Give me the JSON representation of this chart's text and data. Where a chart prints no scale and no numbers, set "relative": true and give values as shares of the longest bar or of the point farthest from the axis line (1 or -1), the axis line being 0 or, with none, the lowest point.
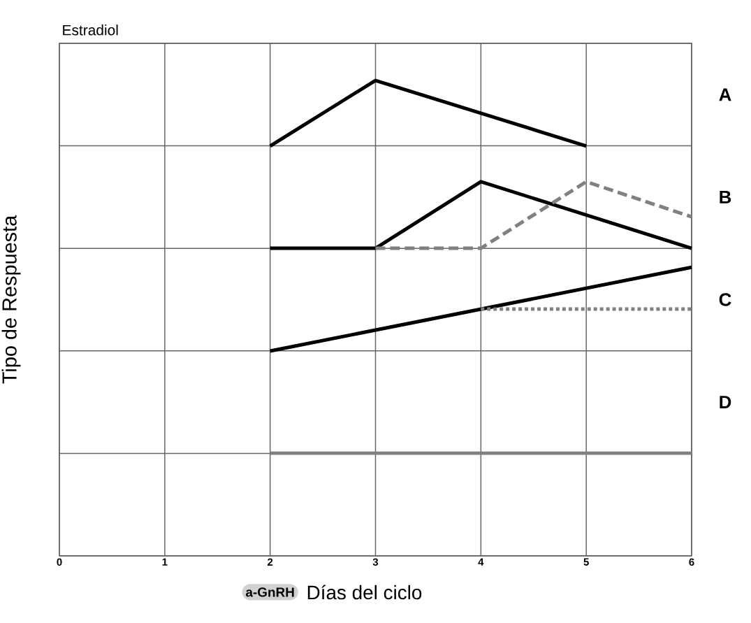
{
  "chart_data": {
    "type": "line",
    "title": "Estradiol",
    "xlabel": "Días del ciclo",
    "ylabel": "Tipo de Respuesta",
    "relative": true,
    "xlim": [
      0,
      6
    ],
    "xticks": [
      0,
      1,
      2,
      3,
      4,
      5,
      6
    ],
    "grid": true,
    "tick_labels": "x",
    "series": [
      {
        "color": "#000000",
        "line_style": "solid",
        "x": [
          2,
          3,
          5
        ],
        "values": [
          0.862,
          1.0,
          0.862
        ]
      },
      {
        "color": "#000000",
        "line_style": "solid",
        "x": [
          2,
          3,
          4,
          6
        ],
        "values": [
          0.647,
          0.647,
          0.787,
          0.647
        ]
      },
      {
        "color": "#808080",
        "line_style": "dashed",
        "x": [
          3,
          4,
          5,
          6
        ],
        "values": [
          0.647,
          0.647,
          0.787,
          0.713
        ]
      },
      {
        "color": "#000000",
        "line_style": "solid",
        "x": [
          2,
          6
        ],
        "values": [
          0.431,
          0.607
        ]
      },
      {
        "color": "#808080",
        "line_style": "dotted",
        "x": [
          4,
          6
        ],
        "values": [
          0.519,
          0.519
        ]
      },
      {
        "color": "#808080",
        "line_style": "solid",
        "x": [
          2,
          6
        ],
        "values": [
          0.216,
          0.216
        ]
      }
    ],
    "annotations": [
      "A",
      "B",
      "C",
      "D",
      "a-GnRH"
    ]
  }
}
